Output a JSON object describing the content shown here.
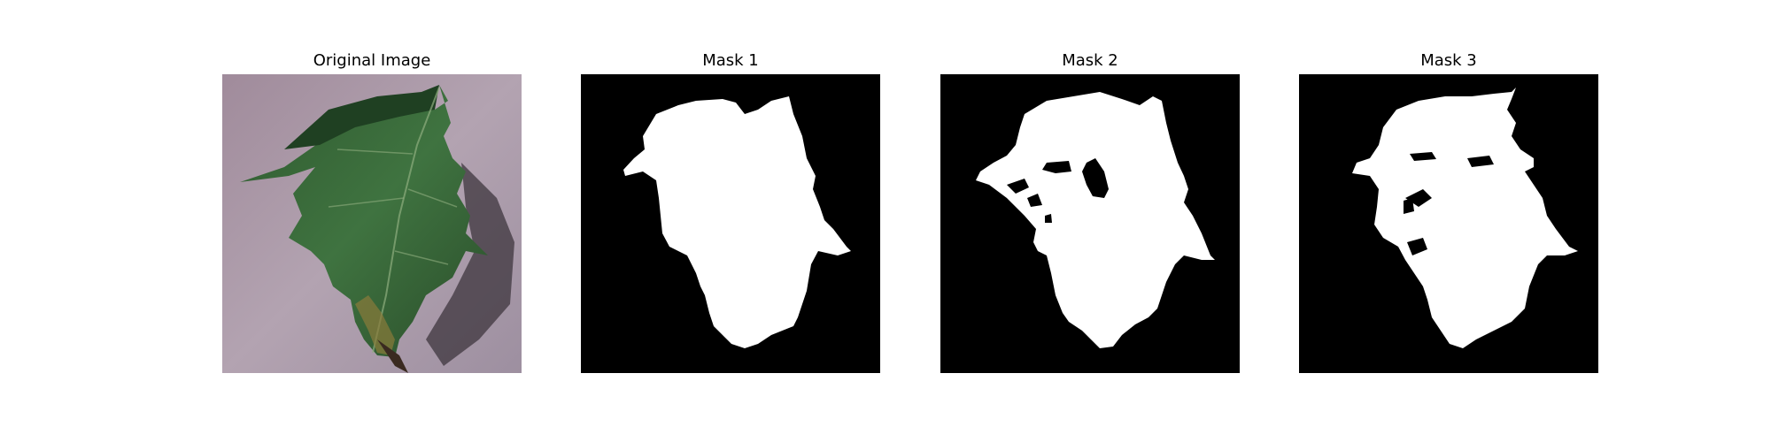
{
  "figure": {
    "panels": [
      {
        "title": "Original Image",
        "kind": "photo",
        "subject": "leaf"
      },
      {
        "title": "Mask 1",
        "kind": "mask",
        "foreground": "#ffffff",
        "background": "#000000"
      },
      {
        "title": "Mask 2",
        "kind": "mask",
        "foreground": "#ffffff",
        "background": "#000000"
      },
      {
        "title": "Mask 3",
        "kind": "mask",
        "foreground": "#ffffff",
        "background": "#000000"
      }
    ]
  }
}
